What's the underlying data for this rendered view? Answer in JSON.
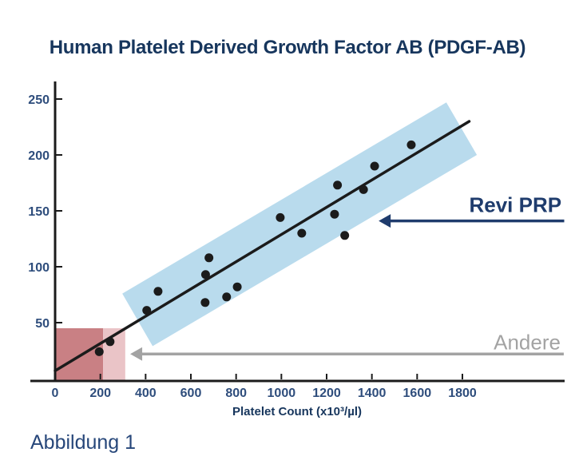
{
  "caption": "Abbildung 1",
  "colors": {
    "title_navy": "#17365d",
    "tick_label": "#2e4d7c",
    "axis": "#1b1b1b",
    "line": "#1b1b1b",
    "band_blue": "#b9dbed",
    "dark_red": "#c98084",
    "light_red": "#eac4c7",
    "navy_accent": "#1f3c6d",
    "gray_accent": "#a3a3a3"
  },
  "chart_data": {
    "type": "scatter",
    "title": "Human Platelet Derived Growth Factor AB (PDGF-AB)",
    "xlabel": "Platelet Count (x10³/µl)",
    "ylabel": "",
    "xlim": [
      0,
      2250
    ],
    "ylim": [
      0,
      265
    ],
    "grid": false,
    "x_ticks": [
      0,
      200,
      400,
      600,
      800,
      1000,
      1200,
      1400,
      1600,
      1800
    ],
    "y_ticks": [
      50,
      100,
      150,
      200,
      250
    ],
    "points": [
      [
        195,
        24
      ],
      [
        243,
        33
      ],
      [
        405,
        61
      ],
      [
        455,
        78
      ],
      [
        663,
        68
      ],
      [
        665,
        93
      ],
      [
        680,
        108
      ],
      [
        758,
        73
      ],
      [
        805,
        82
      ],
      [
        995,
        144
      ],
      [
        1090,
        130
      ],
      [
        1235,
        147
      ],
      [
        1248,
        173
      ],
      [
        1280,
        128
      ],
      [
        1363,
        169
      ],
      [
        1412,
        190
      ],
      [
        1574,
        209
      ]
    ],
    "trend_line": {
      "x1": 0,
      "y1": 7,
      "x2": 1830,
      "y2": 230
    },
    "confidence_band": [
      [
        297,
        76
      ],
      [
        431,
        29
      ],
      [
        1864,
        200
      ],
      [
        1729,
        247
      ]
    ],
    "regions": [
      {
        "name": "andere-dark",
        "x": [
          0,
          212
        ],
        "y": [
          0,
          45
        ],
        "fill": "#c98084"
      },
      {
        "name": "andere-light",
        "x": [
          212,
          310
        ],
        "y": [
          0,
          45
        ],
        "fill": "#eac4c7"
      }
    ],
    "annotations": [
      {
        "name": "revi-prp",
        "label": "Revi PRP",
        "color": "#1f3c6d",
        "weight": 700,
        "arrow_from": [
          2250,
          141
        ],
        "arrow_tip": [
          1430,
          141
        ],
        "text_at": [
          2238,
          149
        ]
      },
      {
        "name": "andere",
        "label": "Andere",
        "color": "#a3a3a3",
        "weight": 400,
        "arrow_from": [
          2248,
          22
        ],
        "arrow_tip": [
          332,
          22
        ],
        "text_at": [
          2234,
          26
        ]
      }
    ]
  }
}
